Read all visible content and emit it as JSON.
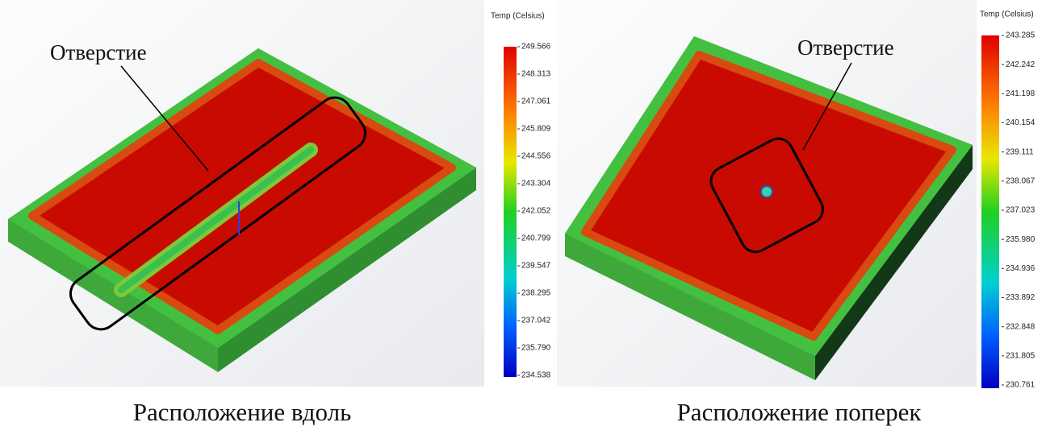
{
  "panels": [
    {
      "annotation": "Отверстие",
      "caption": "Расположение вдоль",
      "legend_title": "Temp (Celsius)",
      "legend_labels": [
        "249.566",
        "248.313",
        "247.061",
        "245.809",
        "244.556",
        "243.304",
        "242.052",
        "240.799",
        "239.547",
        "238.295",
        "237.042",
        "235.790",
        "234.538"
      ]
    },
    {
      "annotation": "Отверстие",
      "caption": "Расположение поперек",
      "legend_title": "Temp (Celsius)",
      "legend_labels": [
        "243.285",
        "242.242",
        "241.198",
        "240.154",
        "239.111",
        "238.067",
        "237.023",
        "235.980",
        "234.936",
        "233.892",
        "232.848",
        "231.805",
        "230.761"
      ]
    }
  ]
}
